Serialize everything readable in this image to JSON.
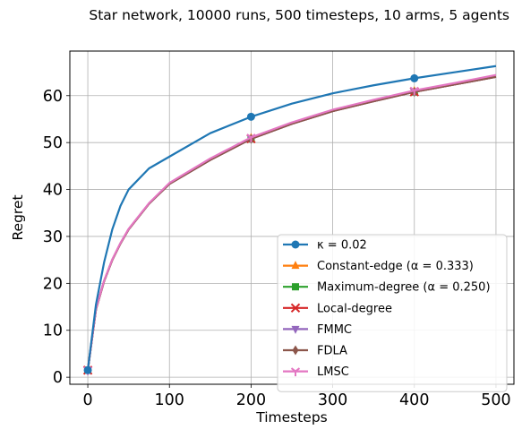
{
  "chart_data": {
    "type": "line",
    "title": "Star network, 10000 runs, 500 timesteps, 10 arms, 5 agents",
    "xlabel": "Timesteps",
    "ylabel": "Regret",
    "xlim": [
      -22,
      522
    ],
    "ylim": [
      -1.5,
      69.5
    ],
    "xticks": [
      0,
      100,
      200,
      300,
      400,
      500
    ],
    "yticks": [
      0,
      10,
      20,
      30,
      40,
      50,
      60
    ],
    "grid": true,
    "legend_position": "lower-right",
    "series": [
      {
        "name": "κ = 0.02",
        "color": "#1f77b4",
        "marker": "circle",
        "x": [
          0,
          10,
          20,
          30,
          40,
          50,
          75,
          100,
          150,
          200,
          250,
          300,
          350,
          400,
          450,
          500
        ],
        "y": [
          1.5,
          15.5,
          24.5,
          31.5,
          36.5,
          40.0,
          44.5,
          47.0,
          52.0,
          55.5,
          58.3,
          60.5,
          62.2,
          63.7,
          65.0,
          66.3
        ],
        "markers_at": [
          0,
          200,
          400
        ]
      },
      {
        "name": "Constant-edge (α = 0.333)",
        "color": "#ff7f0e",
        "marker": "triangle",
        "x": [
          0,
          10,
          20,
          30,
          40,
          50,
          75,
          100,
          150,
          200,
          250,
          300,
          350,
          400,
          450,
          500
        ],
        "y": [
          1.5,
          14.5,
          20.5,
          25.0,
          28.5,
          31.5,
          37.0,
          41.3,
          46.5,
          51.0,
          54.2,
          56.9,
          59.0,
          61.0,
          62.6,
          64.2
        ],
        "markers_at": [
          0,
          200,
          400
        ]
      },
      {
        "name": "Maximum-degree (α = 0.250)",
        "color": "#2ca02c",
        "marker": "square",
        "x": [
          0,
          10,
          20,
          30,
          40,
          50,
          75,
          100,
          150,
          200,
          250,
          300,
          350,
          400,
          450,
          500
        ],
        "y": [
          1.5,
          14.5,
          20.5,
          25.0,
          28.5,
          31.5,
          37.0,
          41.2,
          46.3,
          50.8,
          54.0,
          56.7,
          58.8,
          60.8,
          62.4,
          64.0
        ],
        "markers_at": [
          0,
          200,
          400
        ]
      },
      {
        "name": "Local-degree",
        "color": "#d62728",
        "marker": "x",
        "x": [
          0,
          10,
          20,
          30,
          40,
          50,
          75,
          100,
          150,
          200,
          250,
          300,
          350,
          400,
          450,
          500
        ],
        "y": [
          1.5,
          14.5,
          20.5,
          25.0,
          28.5,
          31.5,
          37.0,
          41.2,
          46.3,
          50.8,
          54.0,
          56.7,
          58.8,
          60.8,
          62.4,
          64.0
        ],
        "markers_at": [
          0,
          200,
          400
        ]
      },
      {
        "name": "FMMC",
        "color": "#9467bd",
        "marker": "triangle-down",
        "x": [
          0,
          10,
          20,
          30,
          40,
          50,
          75,
          100,
          150,
          200,
          250,
          300,
          350,
          400,
          450,
          500
        ],
        "y": [
          1.5,
          14.5,
          20.5,
          25.0,
          28.5,
          31.5,
          37.0,
          41.2,
          46.3,
          50.8,
          54.0,
          56.7,
          58.8,
          60.8,
          62.4,
          64.0
        ],
        "markers_at": [
          0,
          200,
          400
        ]
      },
      {
        "name": "FDLA",
        "color": "#8c564b",
        "marker": "diamond",
        "x": [
          0,
          10,
          20,
          30,
          40,
          50,
          75,
          100,
          150,
          200,
          250,
          300,
          350,
          400,
          450,
          500
        ],
        "y": [
          1.5,
          14.5,
          20.5,
          25.0,
          28.5,
          31.5,
          37.0,
          41.2,
          46.3,
          50.8,
          54.0,
          56.7,
          58.8,
          60.8,
          62.4,
          64.0
        ],
        "markers_at": [
          0,
          200,
          400
        ]
      },
      {
        "name": "LMSC",
        "color": "#e377c2",
        "marker": "tri-down",
        "x": [
          0,
          10,
          20,
          30,
          40,
          50,
          75,
          100,
          150,
          200,
          250,
          300,
          350,
          400,
          450,
          500
        ],
        "y": [
          1.5,
          14.6,
          20.6,
          25.1,
          28.6,
          31.6,
          37.1,
          41.4,
          46.6,
          51.1,
          54.3,
          57.0,
          59.1,
          61.1,
          62.7,
          64.4
        ],
        "markers_at": [
          0,
          200,
          400
        ]
      }
    ]
  }
}
